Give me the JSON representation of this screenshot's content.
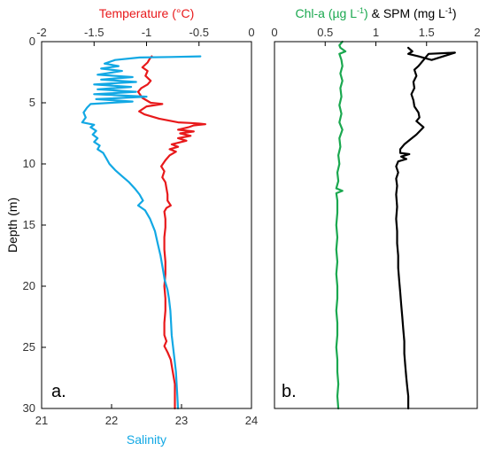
{
  "chart_data": [
    {
      "type": "line",
      "panel_label": "a.",
      "ylabel": "Depth (m)",
      "y_range": [
        0,
        30
      ],
      "y_ticks": [
        "0",
        "5",
        "10",
        "15",
        "20",
        "25",
        "30"
      ],
      "y_inverted": true,
      "top_axis": {
        "label": "Temperature (°C)",
        "range": [
          -2,
          0
        ],
        "ticks": [
          "-2",
          "-1.5",
          "-1",
          "-0.5",
          "0"
        ],
        "color": "#e8191b"
      },
      "bottom_axis": {
        "label": "Salinity",
        "range": [
          21,
          24
        ],
        "ticks": [
          "21",
          "22",
          "23",
          "24"
        ],
        "color": "#12a8e4"
      },
      "grid": false,
      "series": [
        {
          "axis": "top",
          "color": "#e8191b",
          "points": [
            [
              -0.95,
              1.2
            ],
            [
              -0.97,
              1.4
            ],
            [
              -0.99,
              1.7
            ],
            [
              -1.04,
              2.1
            ],
            [
              -0.99,
              2.4
            ],
            [
              -1.01,
              2.8
            ],
            [
              -0.96,
              3.2
            ],
            [
              -0.99,
              3.5
            ],
            [
              -1.05,
              3.8
            ],
            [
              -1.08,
              4.1
            ],
            [
              -1.04,
              4.6
            ],
            [
              -0.96,
              5.0
            ],
            [
              -0.85,
              5.1
            ],
            [
              -1.0,
              5.3
            ],
            [
              -1.07,
              5.7
            ],
            [
              -1.02,
              5.95
            ],
            [
              -0.88,
              6.3
            ],
            [
              -0.7,
              6.6
            ],
            [
              -0.58,
              6.65
            ],
            [
              -0.5,
              6.7
            ],
            [
              -0.44,
              6.75
            ],
            [
              -0.55,
              6.85
            ],
            [
              -0.6,
              7.0
            ],
            [
              -0.7,
              7.2
            ],
            [
              -0.55,
              7.35
            ],
            [
              -0.68,
              7.5
            ],
            [
              -0.58,
              7.7
            ],
            [
              -0.7,
              7.9
            ],
            [
              -0.62,
              8.1
            ],
            [
              -0.76,
              8.4
            ],
            [
              -0.7,
              8.6
            ],
            [
              -0.78,
              8.8
            ],
            [
              -0.72,
              9.0
            ],
            [
              -0.78,
              9.3
            ],
            [
              -0.82,
              9.7
            ],
            [
              -0.86,
              10.2
            ],
            [
              -0.83,
              10.6
            ],
            [
              -0.85,
              11.1
            ],
            [
              -0.82,
              11.5
            ],
            [
              -0.81,
              12.0
            ],
            [
              -0.8,
              12.5
            ],
            [
              -0.8,
              13.0
            ],
            [
              -0.77,
              13.4
            ],
            [
              -0.81,
              13.6
            ],
            [
              -0.83,
              13.9
            ],
            [
              -0.82,
              14.5
            ],
            [
              -0.82,
              15.2
            ],
            [
              -0.83,
              16.0
            ],
            [
              -0.83,
              17.0
            ],
            [
              -0.82,
              18.0
            ],
            [
              -0.82,
              19.0
            ],
            [
              -0.83,
              20.0
            ],
            [
              -0.82,
              21.0
            ],
            [
              -0.82,
              22.0
            ],
            [
              -0.83,
              23.0
            ],
            [
              -0.83,
              24.0
            ],
            [
              -0.81,
              24.5
            ],
            [
              -0.83,
              24.9
            ],
            [
              -0.8,
              25.4
            ],
            [
              -0.77,
              26.0
            ],
            [
              -0.75,
              27.0
            ],
            [
              -0.73,
              28.0
            ],
            [
              -0.73,
              29.0
            ],
            [
              -0.73,
              30.0
            ]
          ]
        },
        {
          "axis": "bottom",
          "color": "#12a8e4",
          "points": [
            [
              23.27,
              1.2
            ],
            [
              22.85,
              1.25
            ],
            [
              22.4,
              1.3
            ],
            [
              22.05,
              1.5
            ],
            [
              21.9,
              1.8
            ],
            [
              22.1,
              2.0
            ],
            [
              21.85,
              2.2
            ],
            [
              22.15,
              2.4
            ],
            [
              21.8,
              2.7
            ],
            [
              22.3,
              2.9
            ],
            [
              21.85,
              3.1
            ],
            [
              22.35,
              3.3
            ],
            [
              21.75,
              3.5
            ],
            [
              22.28,
              3.7
            ],
            [
              21.8,
              3.9
            ],
            [
              22.35,
              4.1
            ],
            [
              21.75,
              4.3
            ],
            [
              22.5,
              4.5
            ],
            [
              21.78,
              4.7
            ],
            [
              22.3,
              4.9
            ],
            [
              21.7,
              5.1
            ],
            [
              21.65,
              5.4
            ],
            [
              21.6,
              5.8
            ],
            [
              21.63,
              6.2
            ],
            [
              21.58,
              6.6
            ],
            [
              21.75,
              6.8
            ],
            [
              21.7,
              7.0
            ],
            [
              21.78,
              7.3
            ],
            [
              21.73,
              7.6
            ],
            [
              21.8,
              7.9
            ],
            [
              21.75,
              8.2
            ],
            [
              21.83,
              8.5
            ],
            [
              21.8,
              8.8
            ],
            [
              21.88,
              9.1
            ],
            [
              21.92,
              9.5
            ],
            [
              21.97,
              10.0
            ],
            [
              22.05,
              10.5
            ],
            [
              22.15,
              11.0
            ],
            [
              22.25,
              11.5
            ],
            [
              22.33,
              12.0
            ],
            [
              22.4,
              12.5
            ],
            [
              22.45,
              13.0
            ],
            [
              22.38,
              13.4
            ],
            [
              22.48,
              13.8
            ],
            [
              22.55,
              14.5
            ],
            [
              22.62,
              15.5
            ],
            [
              22.66,
              16.5
            ],
            [
              22.7,
              17.5
            ],
            [
              22.73,
              18.5
            ],
            [
              22.76,
              19.5
            ],
            [
              22.8,
              20.3
            ],
            [
              22.82,
              21.0
            ],
            [
              22.84,
              22.0
            ],
            [
              22.85,
              23.0
            ],
            [
              22.86,
              24.0
            ],
            [
              22.88,
              25.0
            ],
            [
              22.9,
              26.0
            ],
            [
              22.92,
              27.0
            ],
            [
              22.93,
              28.0
            ],
            [
              22.94,
              29.0
            ],
            [
              22.95,
              30.0
            ]
          ]
        }
      ]
    },
    {
      "type": "line",
      "panel_label": "b.",
      "y_range": [
        0,
        30
      ],
      "y_inverted": true,
      "top_axis": {
        "label_parts": [
          {
            "text": "Chl-a (µg L",
            "color": "#1aa84f"
          },
          {
            "text": "-1",
            "color": "#1aa84f",
            "sup": true
          },
          {
            "text": ")",
            "color": "#1aa84f"
          },
          {
            "text": " & SPM (mg L",
            "color": "#000000"
          },
          {
            "text": "-1",
            "color": "#000000",
            "sup": true
          },
          {
            "text": ")",
            "color": "#000000"
          }
        ],
        "range": [
          0,
          2
        ],
        "ticks": [
          "0",
          "0.5",
          "1",
          "1.5",
          "2"
        ]
      },
      "grid": false,
      "series": [
        {
          "color": "#1aa84f",
          "points": [
            [
              0.67,
              0.0
            ],
            [
              0.64,
              0.3
            ],
            [
              0.65,
              0.5
            ],
            [
              0.7,
              0.8
            ],
            [
              0.64,
              1.0
            ],
            [
              0.66,
              1.5
            ],
            [
              0.67,
              2.0
            ],
            [
              0.65,
              2.6
            ],
            [
              0.67,
              3.2
            ],
            [
              0.65,
              3.8
            ],
            [
              0.66,
              4.5
            ],
            [
              0.64,
              5.2
            ],
            [
              0.66,
              5.9
            ],
            [
              0.64,
              6.6
            ],
            [
              0.67,
              7.2
            ],
            [
              0.64,
              7.9
            ],
            [
              0.65,
              8.6
            ],
            [
              0.63,
              9.3
            ],
            [
              0.64,
              10.0
            ],
            [
              0.62,
              10.7
            ],
            [
              0.63,
              11.4
            ],
            [
              0.61,
              12.0
            ],
            [
              0.67,
              12.2
            ],
            [
              0.61,
              12.4
            ],
            [
              0.62,
              13.0
            ],
            [
              0.62,
              14.0
            ],
            [
              0.61,
              15.0
            ],
            [
              0.62,
              16.0
            ],
            [
              0.61,
              17.0
            ],
            [
              0.62,
              18.0
            ],
            [
              0.61,
              19.0
            ],
            [
              0.62,
              20.0
            ],
            [
              0.62,
              21.0
            ],
            [
              0.61,
              22.0
            ],
            [
              0.62,
              23.0
            ],
            [
              0.62,
              24.0
            ],
            [
              0.61,
              25.0
            ],
            [
              0.62,
              26.0
            ],
            [
              0.62,
              27.0
            ],
            [
              0.63,
              28.0
            ],
            [
              0.62,
              29.0
            ],
            [
              0.63,
              30.0
            ]
          ]
        },
        {
          "color": "#000000",
          "points": [
            [
              1.32,
              0.5
            ],
            [
              1.36,
              0.8
            ],
            [
              1.32,
              1.0
            ],
            [
              1.42,
              1.2
            ],
            [
              1.55,
              1.5
            ],
            [
              1.78,
              0.9
            ],
            [
              1.52,
              1.0
            ],
            [
              1.46,
              1.6
            ],
            [
              1.42,
              2.0
            ],
            [
              1.38,
              2.3
            ],
            [
              1.4,
              2.8
            ],
            [
              1.37,
              3.3
            ],
            [
              1.38,
              3.8
            ],
            [
              1.35,
              4.3
            ],
            [
              1.37,
              4.8
            ],
            [
              1.38,
              5.3
            ],
            [
              1.42,
              5.8
            ],
            [
              1.43,
              6.2
            ],
            [
              1.4,
              6.5
            ],
            [
              1.47,
              7.0
            ],
            [
              1.4,
              7.6
            ],
            [
              1.34,
              8.0
            ],
            [
              1.28,
              8.4
            ],
            [
              1.24,
              8.8
            ],
            [
              1.24,
              9.1
            ],
            [
              1.33,
              9.2
            ],
            [
              1.25,
              9.4
            ],
            [
              1.3,
              9.6
            ],
            [
              1.22,
              9.8
            ],
            [
              1.2,
              10.2
            ],
            [
              1.22,
              10.7
            ],
            [
              1.2,
              11.2
            ],
            [
              1.21,
              11.8
            ],
            [
              1.2,
              12.5
            ],
            [
              1.21,
              13.5
            ],
            [
              1.2,
              14.5
            ],
            [
              1.21,
              15.5
            ],
            [
              1.21,
              16.5
            ],
            [
              1.22,
              17.5
            ],
            [
              1.22,
              18.5
            ],
            [
              1.23,
              19.5
            ],
            [
              1.24,
              20.5
            ],
            [
              1.25,
              21.5
            ],
            [
              1.26,
              22.5
            ],
            [
              1.27,
              23.5
            ],
            [
              1.28,
              24.5
            ],
            [
              1.28,
              25.5
            ],
            [
              1.29,
              26.5
            ],
            [
              1.3,
              27.5
            ],
            [
              1.31,
              28.3
            ],
            [
              1.32,
              29.0
            ],
            [
              1.32,
              30.0
            ]
          ]
        }
      ]
    }
  ]
}
